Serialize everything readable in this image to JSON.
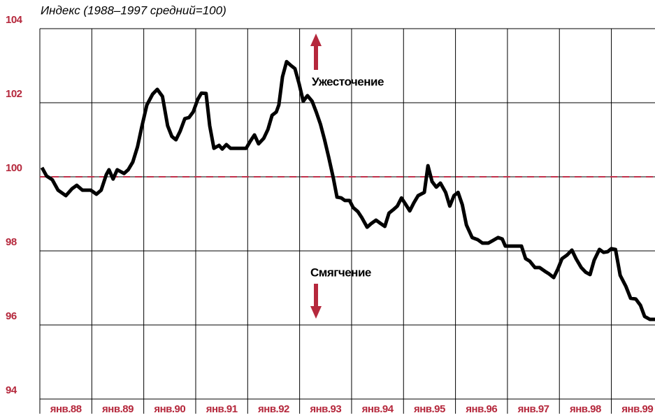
{
  "chart_data": {
    "type": "line",
    "title": "Индекс (1988–1997 средний=100)",
    "annotations": [
      "Ужесточение",
      "Смягчение"
    ],
    "color": "#000000",
    "tick_color": "#b5283c",
    "reference_line": {
      "value": 100,
      "color": "#c0304a"
    },
    "grid": true,
    "xlim": [
      1988,
      1999.84
    ],
    "xticks": [
      {
        "value": 1988,
        "label": "янв.88"
      },
      {
        "value": 1989,
        "label": "янв.89"
      },
      {
        "value": 1990,
        "label": "янв.90"
      },
      {
        "value": 1991,
        "label": "янв.91"
      },
      {
        "value": 1992,
        "label": "янв.92"
      },
      {
        "value": 1993,
        "label": "янв.93"
      },
      {
        "value": 1994,
        "label": "янв.94"
      },
      {
        "value": 1995,
        "label": "янв.95"
      },
      {
        "value": 1996,
        "label": "янв.96"
      },
      {
        "value": 1997,
        "label": "янв.97"
      },
      {
        "value": 1998,
        "label": "янв.98"
      },
      {
        "value": 1999,
        "label": "янв.99"
      }
    ],
    "ylim": [
      94,
      104
    ],
    "yticks": [
      94,
      96,
      98,
      100,
      102,
      104
    ],
    "x": [
      1988.04,
      1988.13,
      1988.24,
      1988.35,
      1988.5,
      1988.62,
      1988.71,
      1988.82,
      1988.98,
      1989.09,
      1989.18,
      1989.28,
      1989.33,
      1989.41,
      1989.49,
      1989.62,
      1989.7,
      1989.79,
      1989.88,
      1989.96,
      1990.06,
      1990.17,
      1990.26,
      1990.36,
      1990.46,
      1990.54,
      1990.62,
      1990.7,
      1990.79,
      1990.87,
      1990.95,
      1991.04,
      1991.11,
      1991.2,
      1991.27,
      1991.35,
      1991.45,
      1991.51,
      1991.59,
      1991.67,
      1991.78,
      1991.89,
      1991.97,
      1992.05,
      1992.13,
      1992.21,
      1992.31,
      1992.39,
      1992.47,
      1992.55,
      1992.6,
      1992.67,
      1992.75,
      1992.82,
      1992.91,
      1992.99,
      1993.07,
      1993.15,
      1993.24,
      1993.32,
      1993.4,
      1993.48,
      1993.56,
      1993.65,
      1993.72,
      1993.8,
      1993.87,
      1993.96,
      1994.03,
      1994.12,
      1994.2,
      1994.3,
      1994.38,
      1994.47,
      1994.55,
      1994.64,
      1994.72,
      1994.8,
      1994.88,
      1994.96,
      1995.04,
      1995.12,
      1995.2,
      1995.28,
      1995.4,
      1995.47,
      1995.55,
      1995.63,
      1995.71,
      1995.81,
      1995.89,
      1995.97,
      1996.05,
      1996.13,
      1996.21,
      1996.32,
      1996.43,
      1996.52,
      1996.63,
      1996.72,
      1996.82,
      1996.9,
      1996.96,
      1997.06,
      1997.17,
      1997.27,
      1997.35,
      1997.43,
      1997.53,
      1997.62,
      1997.72,
      1997.8,
      1997.89,
      1997.97,
      1998.05,
      1998.15,
      1998.24,
      1998.32,
      1998.42,
      1998.51,
      1998.59,
      1998.67,
      1998.77,
      1998.85,
      1998.93,
      1999.0,
      1999.08,
      1999.17,
      1999.28,
      1999.37,
      1999.47,
      1999.56,
      1999.64,
      1999.74,
      1999.84
    ],
    "values": [
      100.25,
      100.02,
      99.92,
      99.64,
      99.49,
      99.68,
      99.77,
      99.64,
      99.64,
      99.53,
      99.64,
      100.06,
      100.19,
      99.94,
      100.19,
      100.09,
      100.19,
      100.4,
      100.81,
      101.34,
      101.94,
      102.23,
      102.36,
      102.17,
      101.38,
      101.09,
      101.0,
      101.23,
      101.57,
      101.6,
      101.75,
      102.09,
      102.26,
      102.25,
      101.38,
      100.77,
      100.85,
      100.75,
      100.87,
      100.77,
      100.77,
      100.77,
      100.77,
      100.96,
      101.13,
      100.89,
      101.04,
      101.28,
      101.66,
      101.75,
      101.94,
      102.7,
      103.11,
      103.02,
      102.92,
      102.51,
      102.04,
      102.19,
      102.04,
      101.75,
      101.42,
      101.0,
      100.53,
      99.96,
      99.45,
      99.43,
      99.36,
      99.36,
      99.17,
      99.06,
      98.89,
      98.64,
      98.74,
      98.83,
      98.75,
      98.66,
      99.02,
      99.11,
      99.21,
      99.43,
      99.26,
      99.08,
      99.3,
      99.49,
      99.58,
      100.3,
      99.87,
      99.72,
      99.83,
      99.58,
      99.21,
      99.49,
      99.58,
      99.25,
      98.7,
      98.36,
      98.3,
      98.21,
      98.21,
      98.28,
      98.36,
      98.32,
      98.13,
      98.13,
      98.13,
      98.13,
      97.79,
      97.72,
      97.55,
      97.55,
      97.45,
      97.38,
      97.28,
      97.51,
      97.79,
      97.89,
      98.02,
      97.79,
      97.55,
      97.42,
      97.36,
      97.75,
      98.04,
      97.96,
      97.98,
      98.06,
      98.04,
      97.34,
      97.04,
      96.72,
      96.7,
      96.53,
      96.23,
      96.15,
      96.15
    ]
  }
}
